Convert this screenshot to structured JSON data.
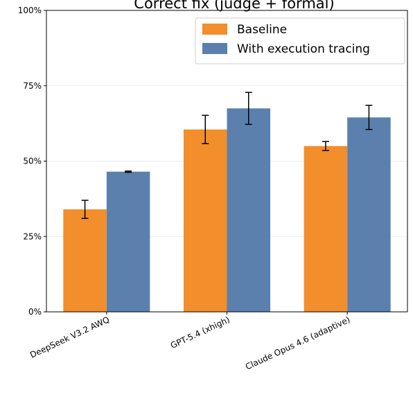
{
  "chart_data": {
    "type": "bar",
    "title": "Correct fix (judge + formal)",
    "xlabel": "",
    "ylabel": "",
    "categories": [
      "DeepSeek V3.2 AWQ",
      "GPT-5.4 (xhigh)",
      "Claude Opus 4.6 (adaptive)"
    ],
    "series": [
      {
        "name": "Baseline",
        "color": "#f28e2b",
        "values": [
          34,
          60.5,
          55
        ],
        "error": [
          3,
          4.7,
          1.5
        ]
      },
      {
        "name": "With execution tracing",
        "color": "#5b80ad",
        "values": [
          46.5,
          67.5,
          64.5
        ],
        "error": [
          0.2,
          5.3,
          4
        ]
      }
    ],
    "ylim": [
      0,
      100
    ],
    "yticks": [
      0,
      25,
      50,
      75,
      100
    ],
    "ytick_labels": [
      "0%",
      "25%",
      "50%",
      "75%",
      "100%"
    ],
    "grid": true,
    "legend_position": "top-right"
  }
}
